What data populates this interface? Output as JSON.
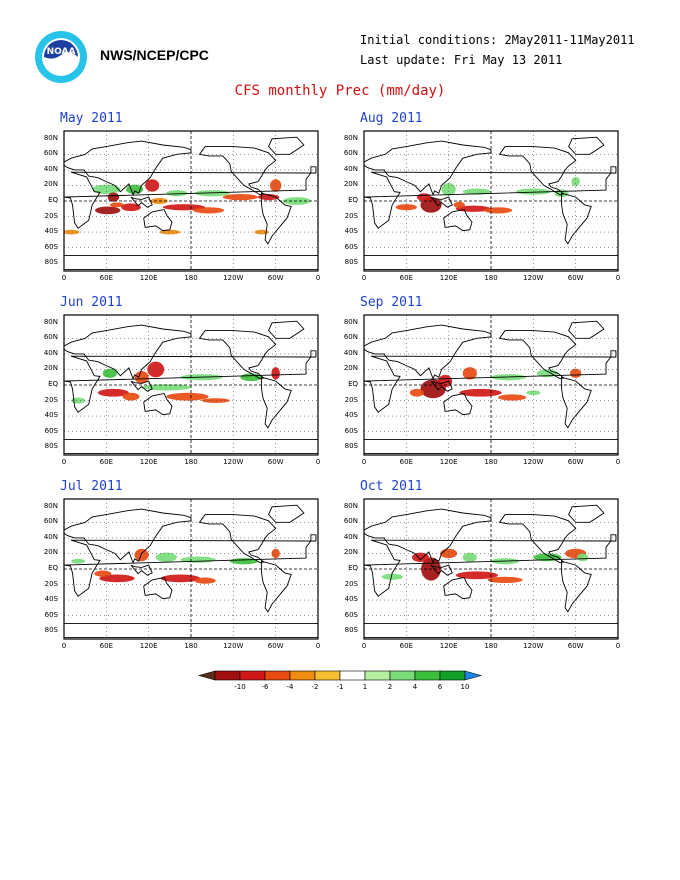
{
  "header": {
    "agency": "NWS/NCEP/CPC",
    "initial_conditions": "Initial conditions: 2May2011-11May2011",
    "last_update": "Last update: Fri May 13 2011",
    "logo_text": "NOAA"
  },
  "title": "CFS monthly Prec (mm/day)",
  "axes": {
    "lat_labels": [
      "80N",
      "60N",
      "40N",
      "20N",
      "EQ",
      "20S",
      "40S",
      "60S",
      "80S"
    ],
    "lon_labels": [
      "0",
      "60E",
      "120E",
      "180",
      "120W",
      "60W",
      "0"
    ]
  },
  "panels": [
    {
      "label": "May 2011"
    },
    {
      "label": "Aug 2011"
    },
    {
      "label": "Jun 2011"
    },
    {
      "label": "Sep 2011"
    },
    {
      "label": "Jul 2011"
    },
    {
      "label": "Oct 2011"
    }
  ],
  "colorbar": {
    "colors": [
      "#5a2e1a",
      "#a01010",
      "#d01818",
      "#e84a10",
      "#f08c10",
      "#f8c030",
      "#ffffff",
      "#b4f0a0",
      "#78dc78",
      "#3cc03c",
      "#10a028",
      "#1e88e8"
    ],
    "ticks": [
      "-10",
      "-6",
      "-4",
      "-2",
      "-1",
      "1",
      "2",
      "4",
      "6",
      "10"
    ]
  }
}
